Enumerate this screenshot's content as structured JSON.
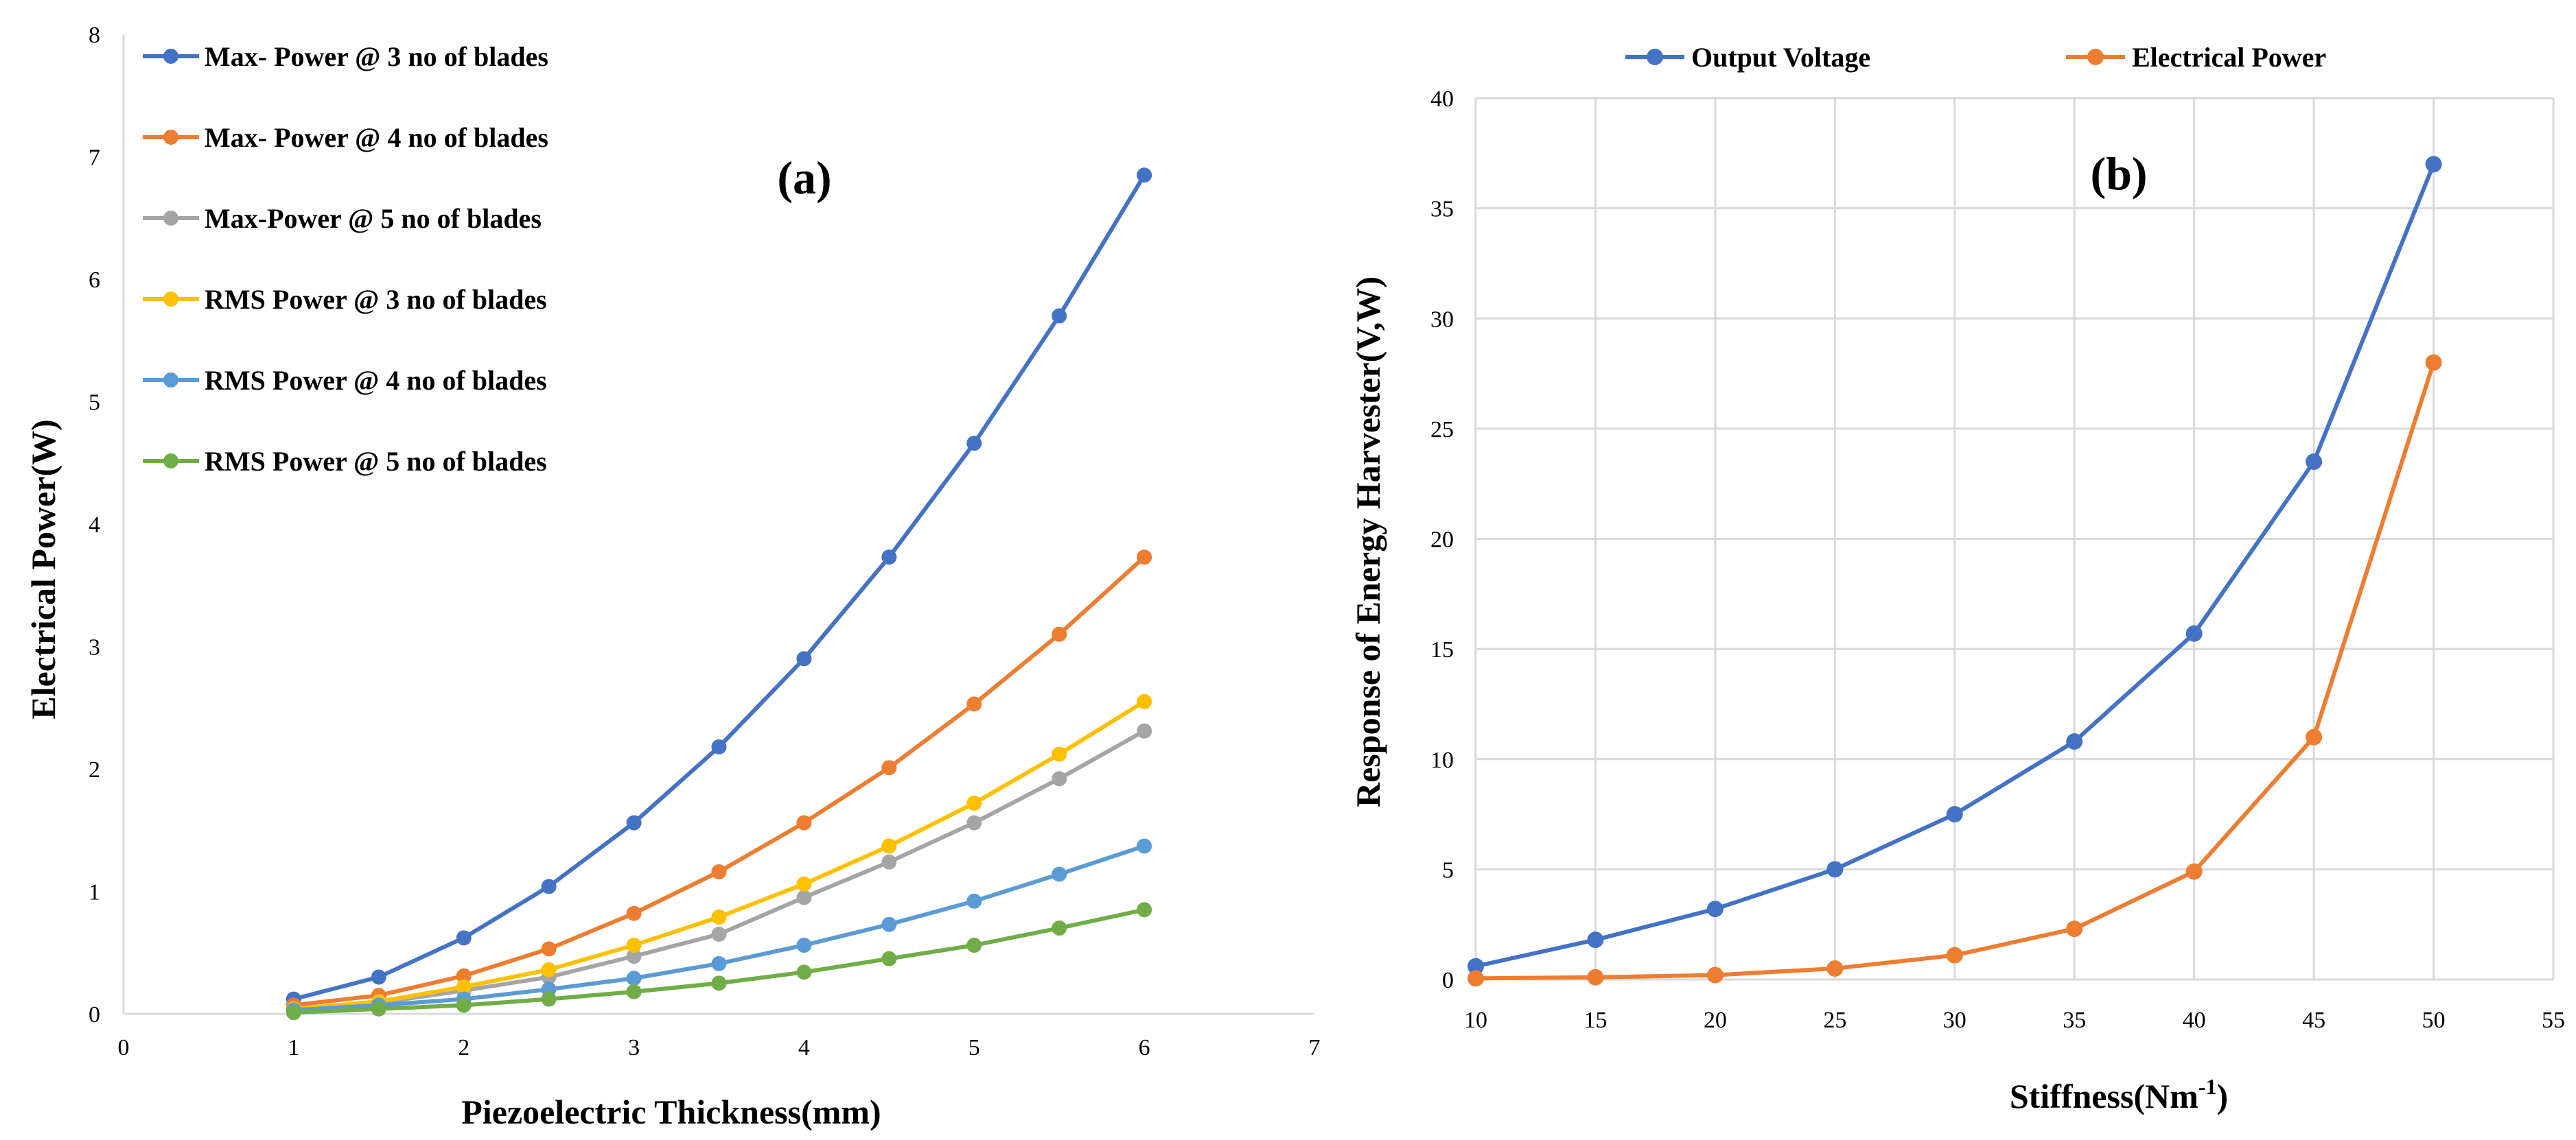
{
  "chart_data": [
    {
      "type": "line",
      "panel_label": "(a)",
      "xlabel": "Piezoelectric Thickness(mm)",
      "ylabel": "Electrical Power(W)",
      "xlim": [
        0,
        7
      ],
      "ylim": [
        0,
        8
      ],
      "xticks": [
        "0",
        "1",
        "2",
        "3",
        "4",
        "5",
        "6",
        "7"
      ],
      "yticks": [
        "0",
        "1",
        "2",
        "3",
        "4",
        "5",
        "6",
        "7",
        "8"
      ],
      "grid": false,
      "legend_position": "top-left",
      "x": [
        1,
        1.5,
        2,
        2.5,
        3,
        3.5,
        4,
        4.5,
        5,
        5.5,
        6
      ],
      "series": [
        {
          "name": "Max- Power @ 3 no of blades",
          "color": "#4472C4",
          "values": [
            0.12,
            0.3,
            0.62,
            1.04,
            1.56,
            2.18,
            2.9,
            3.73,
            4.66,
            5.7,
            6.85
          ]
        },
        {
          "name": "Max- Power @ 4 no of blades",
          "color": "#ED7D31",
          "values": [
            0.07,
            0.15,
            0.31,
            0.53,
            0.82,
            1.16,
            1.56,
            2.01,
            2.53,
            3.1,
            3.73
          ]
        },
        {
          "name": "Max-Power @ 5 no of blades",
          "color": "#A5A5A5",
          "values": [
            0.04,
            0.09,
            0.19,
            0.3,
            0.47,
            0.65,
            0.95,
            1.24,
            1.56,
            1.92,
            2.31
          ]
        },
        {
          "name": "RMS Power @ 3 no of blades",
          "color": "#FFC000",
          "values": [
            0.04,
            0.1,
            0.22,
            0.36,
            0.56,
            0.79,
            1.06,
            1.37,
            1.72,
            2.12,
            2.55
          ]
        },
        {
          "name": "RMS Power @ 4 no of blades",
          "color": "#5B9BD5",
          "values": [
            0.03,
            0.07,
            0.12,
            0.2,
            0.29,
            0.41,
            0.56,
            0.73,
            0.92,
            1.14,
            1.37
          ]
        },
        {
          "name": "RMS Power @ 5 no of blades",
          "color": "#70AD47",
          "values": [
            0.01,
            0.04,
            0.07,
            0.12,
            0.18,
            0.25,
            0.34,
            0.45,
            0.56,
            0.7,
            0.85
          ]
        }
      ]
    },
    {
      "type": "line",
      "panel_label": "(b)",
      "xlabel": "Stiffness(Nm",
      "xlabel_sup": "-1",
      "xlabel_tail": ")",
      "ylabel": "Response of Energy Harvester(V,W)",
      "xlim": [
        10,
        55
      ],
      "ylim": [
        0,
        40
      ],
      "xticks": [
        "10",
        "15",
        "20",
        "25",
        "30",
        "35",
        "40",
        "45",
        "50",
        "55"
      ],
      "yticks": [
        "0",
        "5",
        "10",
        "15",
        "20",
        "25",
        "30",
        "35",
        "40"
      ],
      "grid": true,
      "legend_position": "top",
      "x": [
        10,
        15,
        20,
        25,
        30,
        35,
        40,
        45,
        50
      ],
      "series": [
        {
          "name": "Output Voltage",
          "color": "#4472C4",
          "values": [
            0.6,
            1.8,
            3.2,
            5.0,
            7.5,
            10.8,
            15.7,
            23.5,
            37.0
          ]
        },
        {
          "name": "Electrical Power",
          "color": "#ED7D31",
          "values": [
            0.05,
            0.1,
            0.2,
            0.5,
            1.1,
            2.3,
            4.9,
            11.0,
            28.0
          ]
        }
      ]
    }
  ]
}
